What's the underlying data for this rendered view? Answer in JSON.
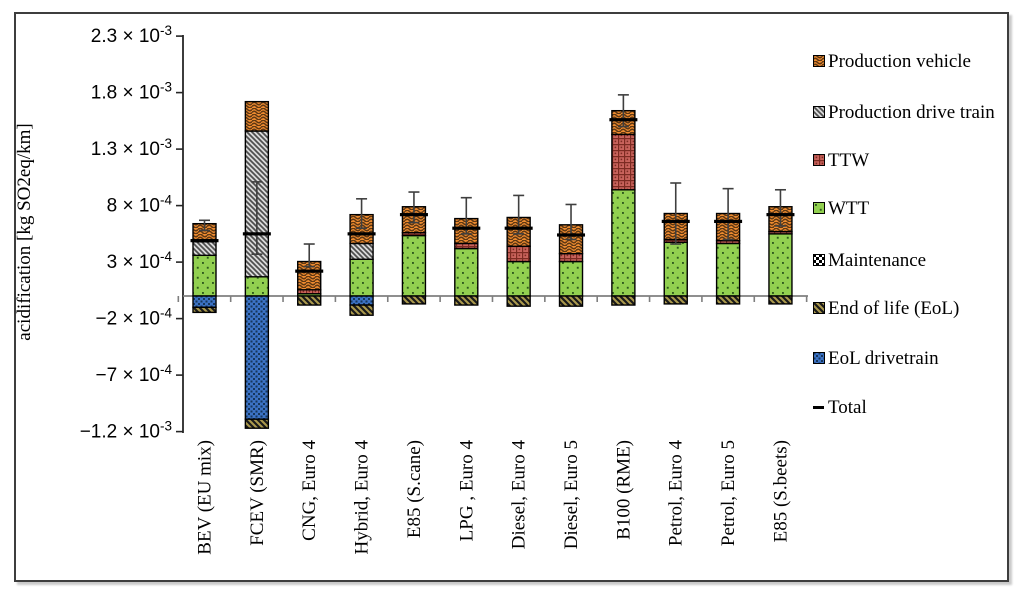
{
  "chart_data": {
    "type": "stacked-bar",
    "title": "",
    "ylabel": "acidification [kg SO2eq/km]",
    "xlabel": "",
    "unit": "kg SO2eq/km",
    "grid": false,
    "legend_position": "right",
    "ylim": [
      -0.0013,
      0.00245
    ],
    "yticks": [
      {
        "value": 0.0023,
        "mantissa": "2.3",
        "exponent": "-3"
      },
      {
        "value": 0.0018,
        "mantissa": "1.8",
        "exponent": "-3"
      },
      {
        "value": 0.0013,
        "mantissa": "1.3",
        "exponent": "-3"
      },
      {
        "value": 0.0008,
        "mantissa": "8",
        "exponent": "-4"
      },
      {
        "value": 0.0003,
        "mantissa": "3",
        "exponent": "-4"
      },
      {
        "value": -0.0002,
        "mantissa": "−2",
        "exponent": "-4"
      },
      {
        "value": -0.0007,
        "mantissa": "−7",
        "exponent": "-4"
      },
      {
        "value": -0.0012,
        "mantissa": "−1.2",
        "exponent": "-3"
      }
    ],
    "categories": [
      "BEV (EU mix)",
      "FCEV (SMR)",
      "CNG, Euro 4",
      "Hybrid, Euro 4",
      "E85 (S.cane)",
      "LPG , Euro 4",
      "Diesel, Euro 4",
      "Diesel, Euro 5",
      "B100 (RME)",
      "Petrol, Euro 4",
      "Petrol, Euro 5",
      "E85 (S.beets)"
    ],
    "series": [
      {
        "name": "Production vehicle",
        "pattern": "wave",
        "color": "#EC8A2F",
        "pattern_color": "#5F3813",
        "values": [
          0.00016,
          0.00026,
          0.00025,
          0.000255,
          0.00023,
          0.00022,
          0.000255,
          0.000255,
          0.00021,
          0.00023,
          0.00024,
          0.00022
        ]
      },
      {
        "name": "Production drive train",
        "pattern": "diag",
        "color": "#D9D9D9",
        "pattern_color": "#4D4D4D",
        "values": [
          0.00012,
          0.00129,
          0,
          0.00014,
          0,
          0,
          0,
          0,
          0,
          0,
          0,
          0
        ]
      },
      {
        "name": "TTW",
        "pattern": "grid",
        "color": "#C9635C",
        "pattern_color": "#7C2B22",
        "values": [
          0,
          0,
          3.5e-05,
          0,
          2.5e-05,
          4.5e-05,
          0.000135,
          7e-05,
          0.00049,
          2.5e-05,
          2.5e-05,
          2e-05
        ]
      },
      {
        "name": "WTT",
        "pattern": "dots",
        "color": "#92D050",
        "pattern_color": "#2E5A1C",
        "values": [
          0.00036,
          0.00017,
          2e-05,
          0.000325,
          0.000535,
          0.00042,
          0.000305,
          0.000305,
          0.00094,
          0.000475,
          0.000465,
          0.00055
        ]
      },
      {
        "name": "Maintenance",
        "pattern": "checker",
        "color": "#FFFFFF",
        "pattern_color": "#000000",
        "values": [
          0,
          0,
          0,
          0,
          0,
          0,
          0,
          0,
          0,
          0,
          0,
          0
        ]
      },
      {
        "name": "End of life (EoL)",
        "pattern": "diagthick",
        "color": "#AC9A4D",
        "pattern_color": "#1A1A1A",
        "values": [
          -4.5e-05,
          -8e-05,
          -8e-05,
          -9e-05,
          -7e-05,
          -8e-05,
          -9e-05,
          -9e-05,
          -8e-05,
          -7e-05,
          -7e-05,
          -7e-05
        ]
      },
      {
        "name": "EoL drivetrain",
        "pattern": "densedots",
        "color": "#3C72C4",
        "pattern_color": "#16365C",
        "values": [
          -0.0001,
          -0.00109,
          0,
          -8e-05,
          0,
          0,
          0,
          0,
          0,
          0,
          0,
          0
        ]
      }
    ],
    "total": {
      "label": "Total",
      "values": [
        0.00049,
        0.00055,
        0.00022,
        0.00055,
        0.00072,
        0.0006,
        0.0006,
        0.00054,
        0.00156,
        0.00066,
        0.00066,
        0.00072
      ]
    },
    "error_bars": {
      "high": [
        0.00067,
        0.00101,
        0.00046,
        0.00086,
        0.00092,
        0.00087,
        0.00089,
        0.00081,
        0.00178,
        0.001,
        0.00095,
        0.00094
      ],
      "low": [
        0.00058,
        0.00037,
        0.00026,
        0.0006,
        0.00065,
        0.00055,
        0.00055,
        0.0005,
        0.0015,
        0.00046,
        0.0005,
        0.00062
      ]
    },
    "colors": {
      "axis": "#262626",
      "zero_line": "#7F7F7F",
      "error_bar": "#3F3F3F",
      "total_marker": "#000000"
    }
  }
}
